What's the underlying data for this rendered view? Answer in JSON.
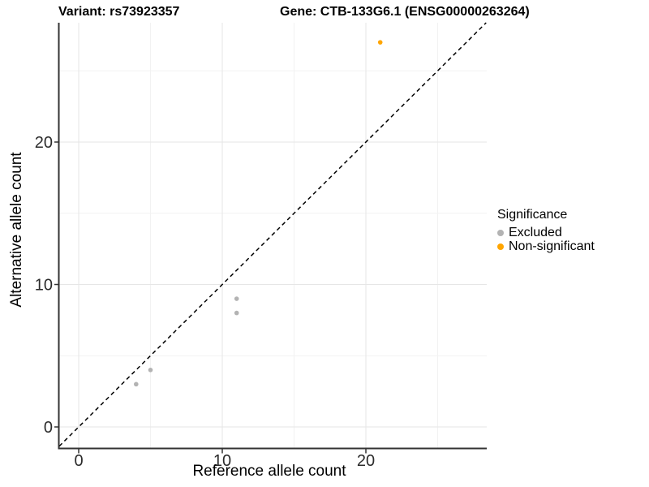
{
  "chart_data": {
    "type": "scatter",
    "left_title": "Variant: rs73923357",
    "right_title": "Gene: CTB-133G6.1 (ENSG00000263264)",
    "xlabel": "Reference allele count",
    "ylabel": "Alternative allele count",
    "xlim": [
      -1.4,
      28.4
    ],
    "ylim": [
      -1.5,
      28.4
    ],
    "x_ticks": [
      "0",
      "10",
      "20"
    ],
    "y_ticks": [
      "0",
      "10",
      "20"
    ],
    "x_tick_values": [
      0,
      10,
      20
    ],
    "y_tick_values": [
      0,
      10,
      20
    ],
    "x_minor_tick_values": [
      5,
      15,
      25
    ],
    "y_minor_tick_values": [
      5,
      15,
      25
    ],
    "grid": "major and minor, very light gray, white panel background",
    "legend": {
      "title": "Significance",
      "position": "right"
    },
    "series": [
      {
        "name": "Excluded",
        "color": "#B3B3B3",
        "points": [
          [
            4,
            3
          ],
          [
            5,
            4
          ],
          [
            11,
            8
          ],
          [
            11,
            9
          ]
        ]
      },
      {
        "name": "Non-significant",
        "color": "#FFA500",
        "points": [
          [
            21,
            27
          ]
        ]
      }
    ],
    "reference_line": {
      "type": "identity",
      "slope": 1,
      "intercept": 0,
      "linetype": "dashed",
      "color": "#000000"
    }
  },
  "colors": {
    "axis_line": "#333333",
    "tick_label": "#2b2b2b",
    "grid_major": "#e6e6e6",
    "grid_minor": "#f2f2f2",
    "background": "#ffffff"
  }
}
